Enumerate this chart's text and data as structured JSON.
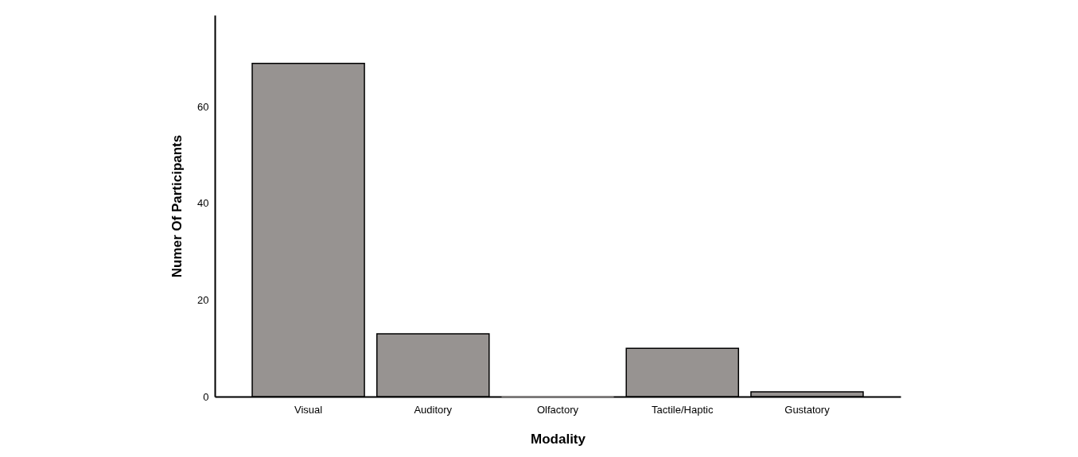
{
  "chart_data": {
    "type": "bar",
    "xlabel": "Modality",
    "ylabel": "Numer Of Participants",
    "categories": [
      "Visual",
      "Auditory",
      "Olfactory",
      "Tactile/Haptic",
      "Gustatory"
    ],
    "values": [
      69,
      13,
      0,
      10,
      1
    ],
    "color": "#979391",
    "ylim": [
      0,
      79
    ],
    "yticks": [
      0,
      20,
      40,
      60
    ],
    "grid": false
  }
}
